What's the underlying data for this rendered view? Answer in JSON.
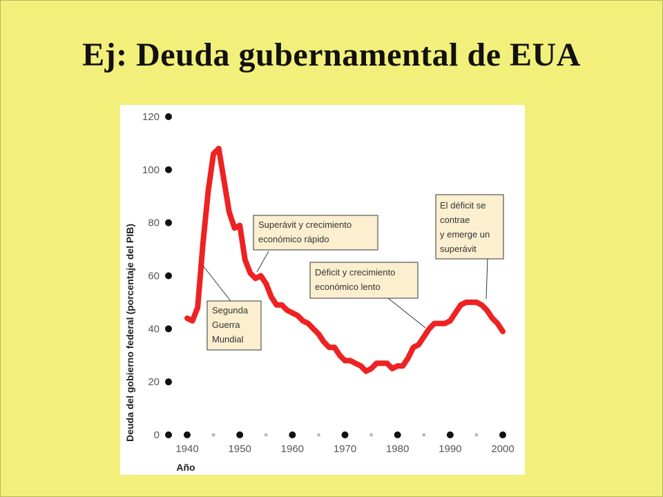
{
  "slide": {
    "title": "Ej: Deuda gubernamental de EUA",
    "background": "#f2f07a"
  },
  "chart_data": {
    "type": "line",
    "xlabel": "Año",
    "ylabel": "Deuda del gobierno federal (porcentaje del PIB)",
    "xlim": [
      1936,
      2001
    ],
    "ylim": [
      0,
      120
    ],
    "x_ticks": [
      "1940",
      "1950",
      "1960",
      "1970",
      "1980",
      "1990",
      "2000"
    ],
    "y_ticks": [
      "0",
      "20",
      "40",
      "60",
      "80",
      "100",
      "120"
    ],
    "line_color": "#ee2222",
    "series": [
      {
        "x": [
          1940,
          1941,
          1942,
          1943,
          1944,
          1945,
          1946,
          1947,
          1948,
          1949,
          1950,
          1951,
          1952,
          1953,
          1954,
          1955,
          1956,
          1957,
          1958,
          1959,
          1960,
          1961,
          1962,
          1963,
          1964,
          1965,
          1966,
          1967,
          1968,
          1969,
          1970,
          1971,
          1972,
          1973,
          1974,
          1975,
          1976,
          1977,
          1978,
          1979,
          1980,
          1981,
          1982,
          1983,
          1984,
          1985,
          1986,
          1987,
          1988,
          1989,
          1990,
          1991,
          1992,
          1993,
          1994,
          1995,
          1996,
          1997,
          1998,
          1999,
          2000
        ],
        "values": [
          44,
          43,
          48,
          72,
          92,
          106,
          108,
          96,
          84,
          78,
          79,
          66,
          61,
          59,
          60,
          57,
          52,
          49,
          49,
          47,
          46,
          45,
          43,
          42,
          40,
          38,
          35,
          33,
          33,
          30,
          28,
          28,
          27,
          26,
          24,
          25,
          27,
          27,
          27,
          25,
          26,
          26,
          29,
          33,
          34,
          37,
          40,
          42,
          42,
          42,
          43,
          46,
          49,
          50,
          50,
          50,
          49,
          47,
          44,
          42,
          39
        ]
      }
    ],
    "annotations": [
      {
        "lines": [
          "Segunda",
          "Guerra",
          "Mundial"
        ]
      },
      {
        "lines": [
          "Superávit y crecimiento",
          "económico rápido"
        ]
      },
      {
        "lines": [
          "Déficit y crecimiento",
          "económico lento"
        ]
      },
      {
        "lines": [
          "El déficit se",
          "contrae",
          "y emerge un",
          "superávit"
        ]
      }
    ]
  }
}
